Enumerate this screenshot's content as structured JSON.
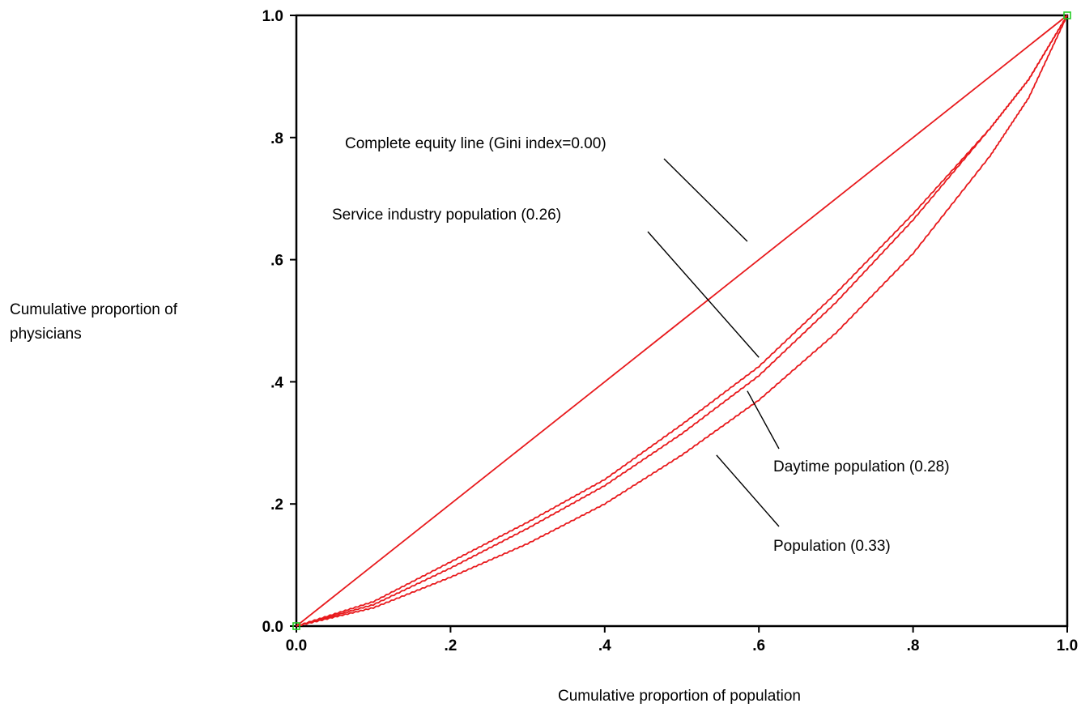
{
  "chart_data": {
    "type": "line",
    "xlabel": "Cumulative proportion of population",
    "ylabel": "Cumulative proportion of physicians",
    "xlim": [
      0,
      1
    ],
    "ylim": [
      0,
      1
    ],
    "x_tick_labels": [
      "0.0",
      ".2",
      ".4",
      ".6",
      ".8",
      "1.0"
    ],
    "y_tick_labels": [
      "0.0",
      ".2",
      ".4",
      ".6",
      ".8",
      "1.0"
    ],
    "x_ticks": [
      0,
      0.2,
      0.4,
      0.6,
      0.8,
      1.0
    ],
    "y_ticks": [
      0,
      0.2,
      0.4,
      0.6,
      0.8,
      1.0
    ],
    "grid": false,
    "legend": "none",
    "line_color": "#e8191c",
    "marker_color": "#22cc22",
    "series": [
      {
        "points": [
          [
            0,
            0
          ],
          [
            1,
            1
          ]
        ]
      },
      {
        "points": [
          [
            0,
            0
          ],
          [
            0.1,
            0.04
          ],
          [
            0.2,
            0.105
          ],
          [
            0.3,
            0.17
          ],
          [
            0.4,
            0.24
          ],
          [
            0.5,
            0.33
          ],
          [
            0.6,
            0.425
          ],
          [
            0.7,
            0.545
          ],
          [
            0.8,
            0.675
          ],
          [
            0.9,
            0.815
          ],
          [
            0.95,
            0.895
          ],
          [
            1,
            1
          ]
        ]
      },
      {
        "points": [
          [
            0,
            0
          ],
          [
            0.1,
            0.035
          ],
          [
            0.2,
            0.095
          ],
          [
            0.3,
            0.16
          ],
          [
            0.4,
            0.23
          ],
          [
            0.5,
            0.315
          ],
          [
            0.6,
            0.41
          ],
          [
            0.7,
            0.53
          ],
          [
            0.8,
            0.665
          ],
          [
            0.9,
            0.815
          ],
          [
            0.95,
            0.895
          ],
          [
            1,
            1
          ]
        ]
      },
      {
        "points": [
          [
            0,
            0
          ],
          [
            0.1,
            0.03
          ],
          [
            0.2,
            0.08
          ],
          [
            0.3,
            0.135
          ],
          [
            0.4,
            0.2
          ],
          [
            0.5,
            0.28
          ],
          [
            0.6,
            0.37
          ],
          [
            0.7,
            0.48
          ],
          [
            0.8,
            0.61
          ],
          [
            0.9,
            0.77
          ],
          [
            0.95,
            0.865
          ],
          [
            1,
            1
          ]
        ]
      }
    ],
    "annotations": [
      {
        "text": "Complete equity line (Gini index=0.00)",
        "pointer_to": [
          0.585,
          0.63
        ]
      },
      {
        "text": "Service industry population (0.26)",
        "pointer_to": [
          0.6,
          0.44
        ]
      },
      {
        "text": "Daytime population (0.28)",
        "pointer_to": [
          0.585,
          0.385
        ]
      },
      {
        "text": "Population (0.33)",
        "pointer_to": [
          0.545,
          0.28
        ]
      }
    ]
  }
}
